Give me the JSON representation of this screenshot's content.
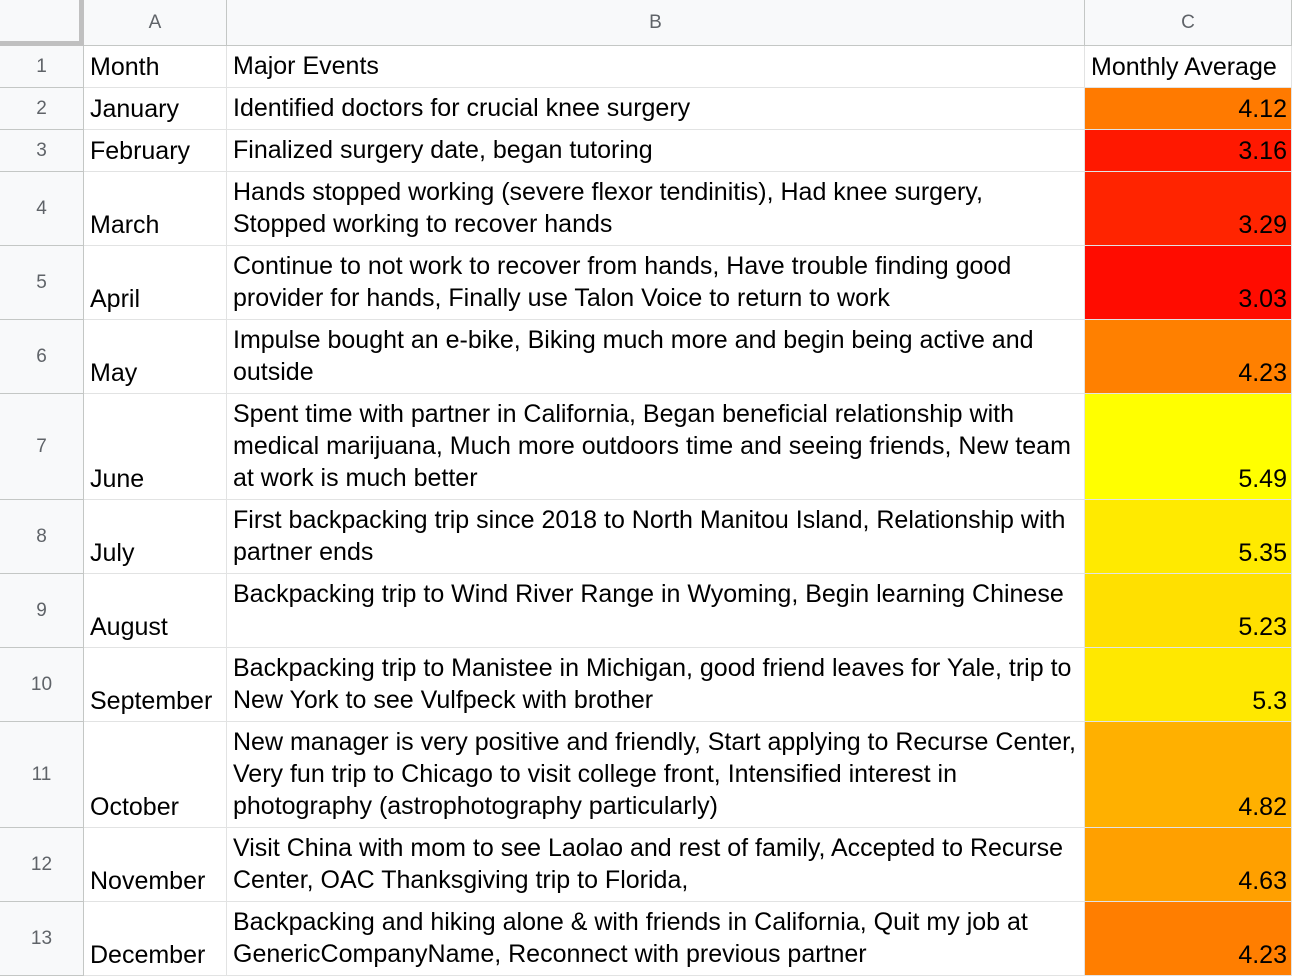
{
  "columns": [
    "A",
    "B",
    "C"
  ],
  "rows": [
    {
      "num": "1",
      "month": "Month",
      "events": "Major Events",
      "avg": "Monthly Average",
      "color": "#ffffff"
    },
    {
      "num": "2",
      "month": "January",
      "events": "Identified doctors for crucial knee surgery",
      "avg": "4.12",
      "color": "#ff7a00"
    },
    {
      "num": "3",
      "month": "February",
      "events": "Finalized surgery date, began tutoring",
      "avg": "3.16",
      "color": "#ff1800"
    },
    {
      "num": "4",
      "month": "March",
      "events": "Hands stopped working (severe flexor tendinitis), Had knee surgery, Stopped working to recover hands",
      "avg": "3.29",
      "color": "#ff2400"
    },
    {
      "num": "5",
      "month": "April",
      "events": "Continue to not work to recover from hands, Have trouble finding good provider for hands, Finally use Talon Voice to return to work",
      "avg": "3.03",
      "color": "#ff0c00"
    },
    {
      "num": "6",
      "month": "May",
      "events": "Impulse bought an e-bike, Biking much more and begin being active and outside",
      "avg": "4.23",
      "color": "#ff8000"
    },
    {
      "num": "7",
      "month": "June",
      "events": "Spent time with partner in California, Began beneficial relationship with medical marijuana, Much more outdoors time and seeing friends, New team at work is much better",
      "avg": "5.49",
      "color": "#ffff00"
    },
    {
      "num": "8",
      "month": "July",
      "events": "First backpacking trip since 2018 to North Manitou Island, Relationship with partner ends",
      "avg": "5.35",
      "color": "#ffea00"
    },
    {
      "num": "9",
      "month": "August",
      "events": "Backpacking trip to Wind River Range in Wyoming, Begin learning Chinese",
      "avg": "5.23",
      "color": "#ffe000"
    },
    {
      "num": "10",
      "month": "September",
      "events": "Backpacking trip to Manistee in Michigan, good friend leaves for Yale, trip to New York to see Vulfpeck with brother",
      "avg": "5.3",
      "color": "#ffe800"
    },
    {
      "num": "11",
      "month": "October",
      "events": "New manager is very positive and friendly, Start applying to Recurse Center, Very fun trip to Chicago to visit college front, Intensified interest in photography (astrophotography particularly)",
      "avg": "4.82",
      "color": "#ffb000"
    },
    {
      "num": "12",
      "month": "November",
      "events": "Visit China with mom to see Laolao and rest of family, Accepted to Recurse Center, OAC Thanksgiving trip to Florida,",
      "avg": "4.63",
      "color": "#ffa000"
    },
    {
      "num": "13",
      "month": "December",
      "events": "Backpacking and hiking alone & with friends in California, Quit my job at GenericCompanyName, Reconnect with previous partner",
      "avg": "4.23",
      "color": "#ff7e00"
    }
  ]
}
